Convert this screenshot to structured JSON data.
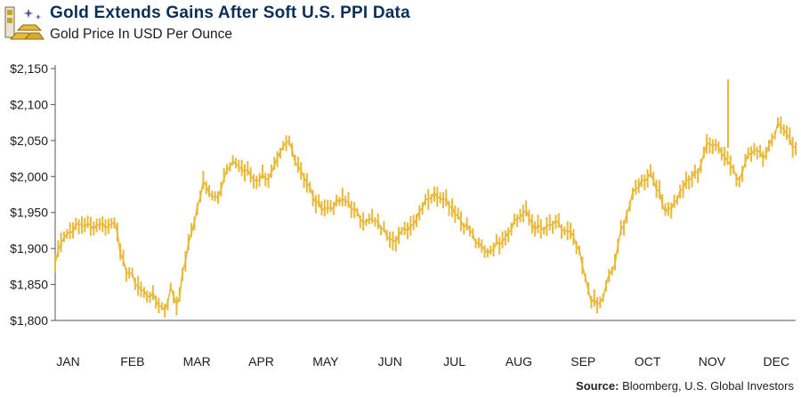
{
  "header": {
    "title": "Gold Extends Gains After Soft U.S. PPI Data",
    "subtitle": "Gold Price In USD Per Ounce"
  },
  "footer": {
    "source_label": "Source:",
    "source_text": "Bloomberg, U.S. Global Investors"
  },
  "colors": {
    "line": "#e8b93a",
    "title": "#0c2f57",
    "axis": "#555555"
  },
  "chart_data": {
    "type": "line",
    "title": "Gold Extends Gains After Soft U.S. PPI Data",
    "subtitle": "Gold Price In USD Per Ounce",
    "xlabel": "",
    "ylabel": "",
    "ylim": [
      1800,
      2150
    ],
    "yticks": [
      1800,
      1850,
      1900,
      1950,
      2000,
      2050,
      2100,
      2150
    ],
    "ytick_labels": [
      "$1,800",
      "$1,850",
      "$1,900",
      "$1,950",
      "$2,000",
      "$2,050",
      "$2,100",
      "$2,150"
    ],
    "xticks": [
      "JAN",
      "FEB",
      "MAR",
      "APR",
      "MAY",
      "JUN",
      "JUL",
      "AUG",
      "SEP",
      "OCT",
      "NOV",
      "DEC"
    ],
    "grid": false,
    "legend": "none",
    "series": [
      {
        "x": [
          0,
          0.1,
          0.25,
          0.4,
          0.55,
          0.7,
          0.85,
          0.95,
          1.0,
          1.08,
          1.2,
          1.35,
          1.5,
          1.62,
          1.7,
          1.8,
          1.9,
          2.0,
          2.15,
          2.3,
          2.5,
          2.65,
          2.8,
          2.9,
          3.0,
          3.1,
          3.2,
          3.35,
          3.5,
          3.62,
          3.75,
          3.85,
          3.95,
          4.0,
          4.1,
          4.25,
          4.4,
          4.55,
          4.7,
          4.85,
          5.0,
          5.15,
          5.3,
          5.5,
          5.62,
          5.75,
          5.9,
          6.0,
          6.15,
          6.3,
          6.45,
          6.55,
          6.7,
          6.85,
          7.0,
          7.15,
          7.3,
          7.45,
          7.6,
          7.75,
          7.9,
          8.0,
          8.12,
          8.25,
          8.35,
          8.45,
          8.52,
          8.6,
          8.7,
          8.8,
          8.9,
          9.0,
          9.12,
          9.25,
          9.35,
          9.45,
          9.6,
          9.75,
          9.9,
          10.0,
          10.1,
          10.25,
          10.35,
          10.45,
          10.55,
          10.62,
          10.68,
          10.8,
          10.9,
          11.0,
          11.12,
          11.22,
          11.35,
          11.45,
          11.5
        ],
        "values": [
          1880,
          1915,
          1925,
          1935,
          1930,
          1935,
          1930,
          1945,
          1890,
          1875,
          1860,
          1840,
          1835,
          1822,
          1815,
          1845,
          1820,
          1875,
          1935,
          1990,
          1970,
          2005,
          2020,
          2010,
          2005,
          1995,
          2000,
          2000,
          2030,
          2050,
          2020,
          2005,
          1985,
          1970,
          1960,
          1955,
          1965,
          1965,
          1945,
          1940,
          1935,
          1920,
          1915,
          1930,
          1945,
          1970,
          1975,
          1975,
          1960,
          1940,
          1925,
          1905,
          1895,
          1905,
          1920,
          1940,
          1950,
          1930,
          1925,
          1935,
          1925,
          1920,
          1900,
          1850,
          1825,
          1820,
          1835,
          1860,
          1880,
          1930,
          1955,
          1980,
          1995,
          2005,
          1985,
          1955,
          1960,
          1985,
          2000,
          2010,
          2040,
          2050,
          2035,
          2020,
          2015,
          1990,
          2010,
          2035,
          2040,
          2030,
          2045,
          2075,
          2065,
          2040,
          2045
        ]
      }
    ]
  }
}
